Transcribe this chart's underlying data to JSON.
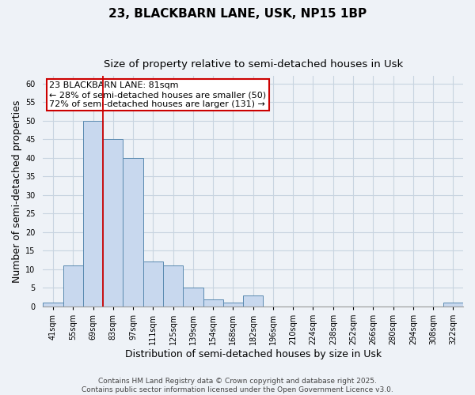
{
  "title": "23, BLACKBARN LANE, USK, NP15 1BP",
  "subtitle": "Size of property relative to semi-detached houses in Usk",
  "xlabel": "Distribution of semi-detached houses by size in Usk",
  "ylabel": "Number of semi-detached properties",
  "bin_labels": [
    "41sqm",
    "55sqm",
    "69sqm",
    "83sqm",
    "97sqm",
    "111sqm",
    "125sqm",
    "139sqm",
    "154sqm",
    "168sqm",
    "182sqm",
    "196sqm",
    "210sqm",
    "224sqm",
    "238sqm",
    "252sqm",
    "266sqm",
    "280sqm",
    "294sqm",
    "308sqm",
    "322sqm"
  ],
  "bar_heights": [
    1,
    11,
    50,
    45,
    40,
    12,
    11,
    5,
    2,
    1,
    3,
    0,
    0,
    0,
    0,
    0,
    0,
    0,
    0,
    0,
    1
  ],
  "bar_color": "#c8d8ee",
  "bar_edge_color": "#5a8ab0",
  "grid_color": "#c8d4e0",
  "vline_color": "#cc0000",
  "vline_x": 2.5,
  "annotation_line1": "23 BLACKBARN LANE: 81sqm",
  "annotation_line2": "← 28% of semi-detached houses are smaller (50)",
  "annotation_line3": "72% of semi-detached houses are larger (131) →",
  "footer_text": "Contains HM Land Registry data © Crown copyright and database right 2025.\nContains public sector information licensed under the Open Government Licence v3.0.",
  "ylim": [
    0,
    62
  ],
  "yticks": [
    0,
    5,
    10,
    15,
    20,
    25,
    30,
    35,
    40,
    45,
    50,
    55,
    60
  ],
  "title_fontsize": 11,
  "subtitle_fontsize": 9.5,
  "label_fontsize": 9,
  "tick_fontsize": 7,
  "annotation_fontsize": 8,
  "footer_fontsize": 6.5,
  "background_color": "#eef2f7"
}
